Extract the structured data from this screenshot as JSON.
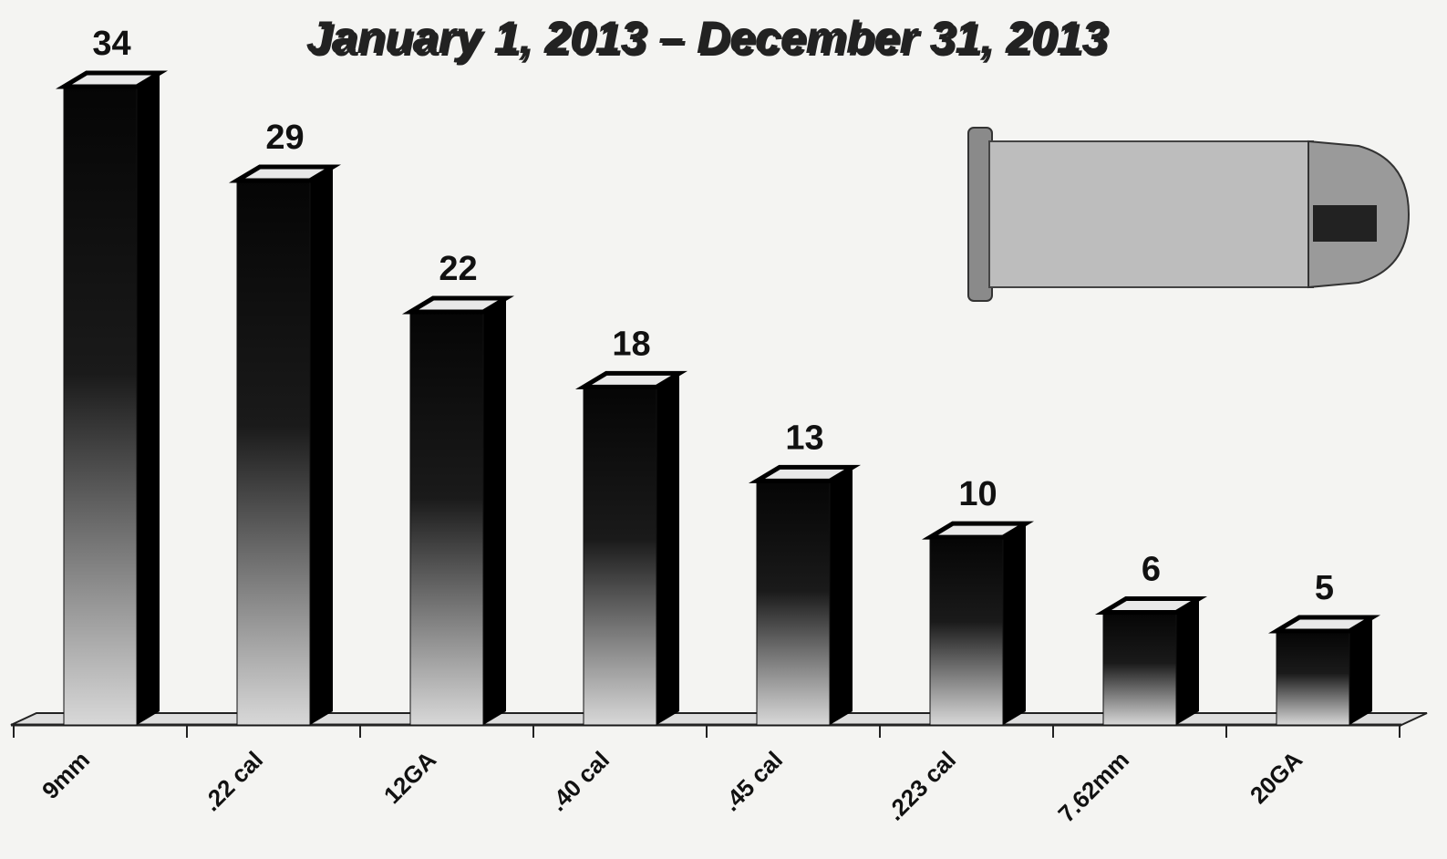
{
  "chart_data": {
    "type": "bar",
    "title": "January 1, 2013 – December 31, 2013",
    "categories": [
      "9mm",
      ".22 cal",
      "12GA",
      ".40 cal",
      ".45 cal",
      ".223 cal",
      "7.62mm",
      "20GA"
    ],
    "values": [
      34,
      29,
      22,
      18,
      13,
      10,
      6,
      5
    ]
  }
}
